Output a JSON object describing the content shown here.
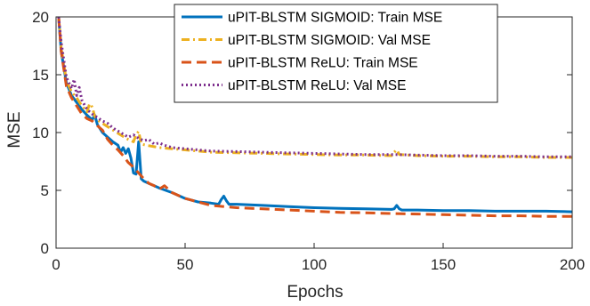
{
  "chart_data": {
    "type": "line",
    "title": "",
    "xlabel": "Epochs",
    "ylabel": "MSE",
    "xlim": [
      0,
      200
    ],
    "ylim": [
      0,
      20
    ],
    "xticks": [
      0,
      50,
      100,
      150,
      200
    ],
    "yticks": [
      0,
      5,
      10,
      15,
      20
    ],
    "grid": false,
    "legend_position": "top-right",
    "series": [
      {
        "name": "uPIT-BLSTM SIGMOID: Train MSE",
        "color": "#0072BD",
        "dash": "solid",
        "x": [
          1,
          2,
          4,
          6,
          8,
          10,
          12,
          14,
          15,
          16,
          18,
          20,
          22,
          24,
          25,
          26,
          27,
          28,
          29,
          30,
          31,
          32,
          33,
          34,
          36,
          38,
          40,
          45,
          50,
          55,
          60,
          63,
          64,
          65,
          66,
          67,
          70,
          80,
          90,
          100,
          110,
          120,
          130,
          131,
          132,
          133,
          134,
          140,
          150,
          160,
          170,
          180,
          190,
          200
        ],
        "values": [
          20.0,
          17.0,
          14.3,
          13.2,
          12.6,
          12.0,
          11.5,
          11.1,
          11.5,
          10.7,
          10.0,
          9.6,
          9.2,
          8.9,
          8.3,
          8.7,
          8.2,
          8.6,
          7.8,
          6.5,
          6.4,
          9.2,
          6.0,
          5.8,
          5.6,
          5.4,
          5.2,
          4.8,
          4.3,
          4.0,
          3.9,
          3.8,
          4.2,
          4.5,
          4.1,
          3.8,
          3.8,
          3.7,
          3.6,
          3.5,
          3.45,
          3.4,
          3.35,
          3.4,
          3.7,
          3.4,
          3.3,
          3.3,
          3.25,
          3.25,
          3.2,
          3.2,
          3.2,
          3.15
        ]
      },
      {
        "name": "uPIT-BLSTM SIGMOID: Val MSE",
        "color": "#EDB120",
        "dash": "dashdot",
        "x": [
          1,
          2,
          4,
          6,
          8,
          10,
          12,
          13,
          14,
          15,
          16,
          18,
          20,
          25,
          28,
          30,
          31,
          32,
          33,
          35,
          40,
          45,
          50,
          60,
          70,
          80,
          90,
          100,
          110,
          120,
          130,
          131,
          132,
          133,
          140,
          150,
          160,
          170,
          180,
          190,
          200
        ],
        "values": [
          20.0,
          17.3,
          14.5,
          13.5,
          13.0,
          12.3,
          11.8,
          12.5,
          12.2,
          11.4,
          11.1,
          10.8,
          10.5,
          9.8,
          9.4,
          9.2,
          9.8,
          10.1,
          9.0,
          8.9,
          8.7,
          8.6,
          8.5,
          8.3,
          8.25,
          8.2,
          8.15,
          8.1,
          8.05,
          8.05,
          8.0,
          8.3,
          8.5,
          8.1,
          8.0,
          7.95,
          7.95,
          7.9,
          7.9,
          7.85,
          7.85
        ]
      },
      {
        "name": "uPIT-BLSTM ReLU: Train MSE",
        "color": "#D95319",
        "dash": "dashed",
        "x": [
          1,
          2,
          4,
          6,
          8,
          10,
          12,
          14,
          16,
          18,
          20,
          22,
          24,
          26,
          28,
          30,
          32,
          34,
          36,
          38,
          40,
          42,
          43,
          44,
          46,
          50,
          55,
          60,
          70,
          80,
          90,
          100,
          110,
          120,
          130,
          140,
          150,
          160,
          170,
          180,
          190,
          200
        ],
        "values": [
          20.0,
          17.0,
          14.0,
          13.0,
          12.3,
          11.6,
          11.2,
          11.0,
          10.6,
          10.2,
          9.4,
          8.9,
          8.5,
          8.0,
          7.4,
          7.0,
          6.5,
          6.0,
          5.6,
          5.4,
          5.1,
          5.4,
          5.2,
          4.9,
          4.7,
          4.3,
          4.0,
          3.7,
          3.5,
          3.4,
          3.3,
          3.2,
          3.1,
          3.05,
          3.0,
          2.95,
          2.9,
          2.85,
          2.8,
          2.8,
          2.75,
          2.75
        ]
      },
      {
        "name": "uPIT-BLSTM ReLU: Val MSE",
        "color": "#7E2F8E",
        "dash": "dotted",
        "x": [
          1,
          2,
          4,
          6,
          7,
          8,
          9,
          10,
          12,
          14,
          16,
          18,
          20,
          22,
          25,
          28,
          30,
          32,
          34,
          36,
          38,
          40,
          42,
          45,
          50,
          60,
          70,
          80,
          90,
          100,
          110,
          120,
          130,
          140,
          150,
          160,
          170,
          180,
          190,
          200
        ],
        "values": [
          20.0,
          17.8,
          14.8,
          13.8,
          14.6,
          13.2,
          13.9,
          12.8,
          12.0,
          11.6,
          11.3,
          11.0,
          10.8,
          10.4,
          10.0,
          9.6,
          9.8,
          9.5,
          9.3,
          9.4,
          9.0,
          9.1,
          8.9,
          8.7,
          8.6,
          8.4,
          8.35,
          8.3,
          8.25,
          8.2,
          8.15,
          8.1,
          8.1,
          8.05,
          8.0,
          8.0,
          7.95,
          7.95,
          7.9,
          7.9
        ]
      }
    ]
  }
}
